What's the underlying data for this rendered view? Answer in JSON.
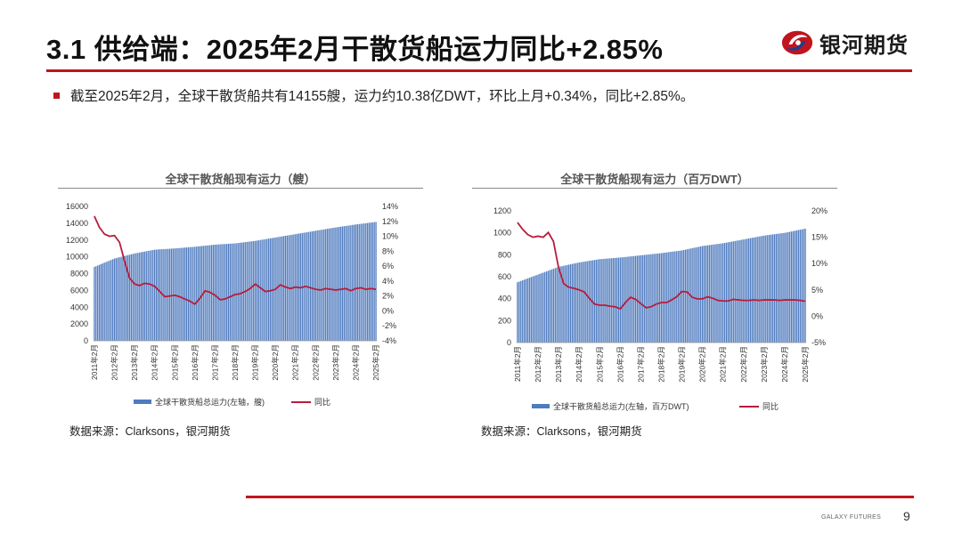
{
  "slide": {
    "title": "3.1 供给端：2025年2月干散货船运力同比+2.85%",
    "bullet": "截至2025年2月，全球干散货船共有14155艘，运力约10.38亿DWT，环比上月+0.34%，同比+2.85%。",
    "logo_text": "银河期货",
    "footer_brand": "GALAXY FUTURES",
    "page_number": "9",
    "accent_color": "#c0141e"
  },
  "sources": {
    "left": "数据来源：Clarksons，银河期货",
    "right": "数据来源：Clarksons，银河期货"
  },
  "chart_data": [
    {
      "type": "bar+line",
      "title": "全球干散货船现有运力（艘）",
      "x_ticks": [
        "2011年2月",
        "2012年2月",
        "2013年2月",
        "2014年2月",
        "2015年2月",
        "2016年2月",
        "2017年2月",
        "2018年2月",
        "2019年2月",
        "2020年2月",
        "2021年2月",
        "2022年2月",
        "2023年2月",
        "2024年2月",
        "2025年2月"
      ],
      "y_left_ticks": [
        "0",
        "2000",
        "4000",
        "6000",
        "8000",
        "10000",
        "12000",
        "14000",
        "16000"
      ],
      "y_left_range": [
        0,
        16000
      ],
      "y_right_ticks": [
        "-4%",
        "-2%",
        "0%",
        "2%",
        "4%",
        "6%",
        "8%",
        "10%",
        "12%",
        "14%"
      ],
      "y_right_range": [
        -4,
        14
      ],
      "bar_series": {
        "name": "全球干散货船总运力(左轴，艘)",
        "color": "#4f7bbf",
        "anchors": [
          [
            0,
            8800
          ],
          [
            12,
            9800
          ],
          [
            24,
            10400
          ],
          [
            36,
            10850
          ],
          [
            48,
            11000
          ],
          [
            60,
            11200
          ],
          [
            72,
            11450
          ],
          [
            84,
            11600
          ],
          [
            96,
            11900
          ],
          [
            108,
            12300
          ],
          [
            120,
            12700
          ],
          [
            132,
            13100
          ],
          [
            144,
            13500
          ],
          [
            156,
            13850
          ],
          [
            168,
            14155
          ]
        ]
      },
      "line_series": {
        "name": "同比",
        "color": "#b81c3c",
        "anchors": [
          [
            0,
            12.7
          ],
          [
            3,
            11.2
          ],
          [
            6,
            10.3
          ],
          [
            9,
            10.0
          ],
          [
            12,
            10.1
          ],
          [
            15,
            9.2
          ],
          [
            18,
            6.7
          ],
          [
            21,
            4.4
          ],
          [
            24,
            3.6
          ],
          [
            27,
            3.4
          ],
          [
            30,
            3.7
          ],
          [
            33,
            3.6
          ],
          [
            36,
            3.3
          ],
          [
            39,
            2.6
          ],
          [
            42,
            1.9
          ],
          [
            45,
            2.0
          ],
          [
            48,
            2.1
          ],
          [
            51,
            1.9
          ],
          [
            54,
            1.6
          ],
          [
            57,
            1.3
          ],
          [
            60,
            0.9
          ],
          [
            63,
            1.7
          ],
          [
            66,
            2.7
          ],
          [
            69,
            2.5
          ],
          [
            72,
            2.1
          ],
          [
            75,
            1.5
          ],
          [
            78,
            1.6
          ],
          [
            81,
            1.9
          ],
          [
            84,
            2.2
          ],
          [
            87,
            2.3
          ],
          [
            90,
            2.6
          ],
          [
            93,
            3.0
          ],
          [
            96,
            3.6
          ],
          [
            99,
            3.1
          ],
          [
            102,
            2.6
          ],
          [
            105,
            2.7
          ],
          [
            108,
            2.9
          ],
          [
            111,
            3.5
          ],
          [
            114,
            3.2
          ],
          [
            117,
            3.0
          ],
          [
            120,
            3.2
          ],
          [
            123,
            3.1
          ],
          [
            126,
            3.3
          ],
          [
            129,
            3.1
          ],
          [
            132,
            2.9
          ],
          [
            135,
            2.8
          ],
          [
            138,
            3.0
          ],
          [
            141,
            2.9
          ],
          [
            144,
            2.8
          ],
          [
            147,
            2.9
          ],
          [
            150,
            3.0
          ],
          [
            153,
            2.7
          ],
          [
            156,
            3.0
          ],
          [
            159,
            3.1
          ],
          [
            162,
            2.9
          ],
          [
            165,
            3.0
          ],
          [
            168,
            2.9
          ]
        ]
      }
    },
    {
      "type": "bar+line",
      "title": "全球干散货船现有运力（百万DWT）",
      "x_ticks": [
        "2011年2月",
        "2012年2月",
        "2013年2月",
        "2014年2月",
        "2015年2月",
        "2016年2月",
        "2017年2月",
        "2018年2月",
        "2019年2月",
        "2020年2月",
        "2021年2月",
        "2022年2月",
        "2023年2月",
        "2024年2月",
        "2025年2月"
      ],
      "y_left_ticks": [
        "0",
        "200",
        "400",
        "600",
        "800",
        "1000",
        "1200"
      ],
      "y_left_range": [
        0,
        1200
      ],
      "y_right_ticks": [
        "-5%",
        "0%",
        "5%",
        "10%",
        "15%",
        "20%"
      ],
      "y_right_range": [
        -5,
        20
      ],
      "bar_series": {
        "name": "全球干散货船总运力(左轴，百万DWT)",
        "color": "#4f7bbf",
        "anchors": [
          [
            0,
            550
          ],
          [
            12,
            620
          ],
          [
            24,
            690
          ],
          [
            36,
            730
          ],
          [
            48,
            760
          ],
          [
            60,
            775
          ],
          [
            72,
            795
          ],
          [
            84,
            815
          ],
          [
            96,
            840
          ],
          [
            108,
            880
          ],
          [
            120,
            905
          ],
          [
            132,
            940
          ],
          [
            144,
            975
          ],
          [
            156,
            1000
          ],
          [
            168,
            1038
          ]
        ]
      },
      "line_series": {
        "name": "同比",
        "color": "#b81c3c",
        "anchors": [
          [
            0,
            17.8
          ],
          [
            3,
            16.5
          ],
          [
            6,
            15.5
          ],
          [
            9,
            15.0
          ],
          [
            12,
            15.2
          ],
          [
            15,
            15.0
          ],
          [
            18,
            15.9
          ],
          [
            21,
            14.2
          ],
          [
            24,
            9.2
          ],
          [
            27,
            6.2
          ],
          [
            30,
            5.5
          ],
          [
            33,
            5.3
          ],
          [
            36,
            5.0
          ],
          [
            39,
            4.6
          ],
          [
            42,
            3.4
          ],
          [
            45,
            2.3
          ],
          [
            48,
            2.1
          ],
          [
            51,
            2.1
          ],
          [
            54,
            1.9
          ],
          [
            57,
            1.8
          ],
          [
            60,
            1.4
          ],
          [
            63,
            2.6
          ],
          [
            66,
            3.6
          ],
          [
            69,
            3.2
          ],
          [
            72,
            2.4
          ],
          [
            75,
            1.6
          ],
          [
            78,
            1.8
          ],
          [
            81,
            2.3
          ],
          [
            84,
            2.6
          ],
          [
            87,
            2.6
          ],
          [
            90,
            3.1
          ],
          [
            93,
            3.7
          ],
          [
            96,
            4.7
          ],
          [
            99,
            4.6
          ],
          [
            102,
            3.6
          ],
          [
            105,
            3.3
          ],
          [
            108,
            3.3
          ],
          [
            111,
            3.7
          ],
          [
            114,
            3.4
          ],
          [
            117,
            3.0
          ],
          [
            120,
            2.9
          ],
          [
            123,
            2.9
          ],
          [
            126,
            3.2
          ],
          [
            129,
            3.1
          ],
          [
            132,
            3.0
          ],
          [
            135,
            3.0
          ],
          [
            138,
            3.1
          ],
          [
            141,
            3.0
          ],
          [
            144,
            3.1
          ],
          [
            147,
            3.1
          ],
          [
            150,
            3.1
          ],
          [
            153,
            3.0
          ],
          [
            156,
            3.1
          ],
          [
            159,
            3.1
          ],
          [
            162,
            3.1
          ],
          [
            165,
            3.0
          ],
          [
            168,
            2.85
          ]
        ]
      }
    }
  ]
}
